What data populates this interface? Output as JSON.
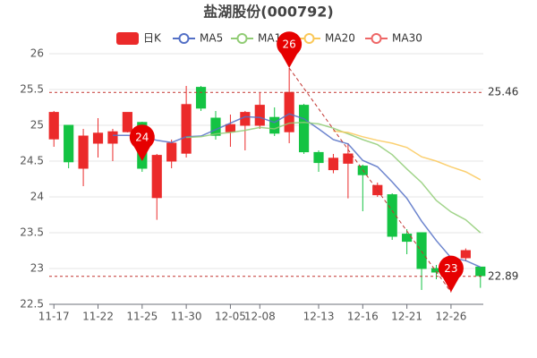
{
  "chart_data": {
    "type": "candlestick",
    "title": "盐湖股份(000792)",
    "categories": [
      "11-17",
      null,
      null,
      "11-22",
      null,
      null,
      "11-25",
      null,
      null,
      "11-30",
      null,
      null,
      "12-05",
      null,
      "12-08",
      null,
      null,
      null,
      "12-13",
      null,
      null,
      "12-16",
      null,
      null,
      "12-21",
      null,
      null,
      "12-26",
      null,
      null
    ],
    "candles": {
      "name": "日K",
      "color_up": "#eb2a2a",
      "color_down": "#14c343",
      "open": [
        24.81,
        25.0,
        24.4,
        24.75,
        24.75,
        24.91,
        25.04,
        23.99,
        24.5,
        24.61,
        25.53,
        25.1,
        24.91,
        25.0,
        25.0,
        25.11,
        24.91,
        25.28,
        24.62,
        24.38,
        24.47,
        24.43,
        24.03,
        24.03,
        23.48,
        23.5,
        23.0,
        22.95,
        23.15,
        23.02
      ],
      "close": [
        25.18,
        24.49,
        24.85,
        24.89,
        24.91,
        25.18,
        24.4,
        24.58,
        24.75,
        25.29,
        25.24,
        24.86,
        25.01,
        25.18,
        25.28,
        24.89,
        25.46,
        24.63,
        24.48,
        24.54,
        24.6,
        24.31,
        24.16,
        23.45,
        23.38,
        23.0,
        22.95,
        22.98,
        23.25,
        22.9
      ],
      "high": [
        25.2,
        25.0,
        24.95,
        25.1,
        24.95,
        25.18,
        25.05,
        24.6,
        24.8,
        25.55,
        25.55,
        25.2,
        25.15,
        25.2,
        25.45,
        25.25,
        25.8,
        25.3,
        24.65,
        24.6,
        24.75,
        24.45,
        24.2,
        24.05,
        23.55,
        23.5,
        23.05,
        23.1,
        23.28,
        23.02
      ],
      "low": [
        24.7,
        24.4,
        24.15,
        24.55,
        24.5,
        24.9,
        24.35,
        23.68,
        24.4,
        24.55,
        25.2,
        24.8,
        24.7,
        24.65,
        24.95,
        24.85,
        24.75,
        24.6,
        24.35,
        24.33,
        23.98,
        23.8,
        24.0,
        23.4,
        23.2,
        22.7,
        22.85,
        22.67,
        23.1,
        22.73
      ]
    },
    "series": [
      {
        "name": "MA5",
        "color": "#5470c6",
        "values": [
          null,
          null,
          null,
          null,
          24.86,
          24.86,
          24.85,
          24.79,
          24.76,
          24.84,
          24.85,
          24.94,
          25.03,
          25.12,
          25.11,
          25.04,
          25.16,
          25.09,
          24.95,
          24.8,
          24.74,
          24.51,
          24.42,
          24.21,
          23.98,
          23.66,
          23.39,
          23.15,
          23.11,
          23.02
        ]
      },
      {
        "name": "MA10",
        "color": "#91cc75",
        "values": [
          null,
          null,
          null,
          null,
          null,
          null,
          null,
          null,
          null,
          24.83,
          24.84,
          24.88,
          24.9,
          24.93,
          24.97,
          24.95,
          25.03,
          25.04,
          25.02,
          24.96,
          24.88,
          24.8,
          24.73,
          24.59,
          24.39,
          24.2,
          23.95,
          23.79,
          23.68,
          23.5
        ]
      },
      {
        "name": "MA20",
        "color": "#fac858",
        "values": [
          null,
          null,
          null,
          null,
          null,
          null,
          null,
          null,
          null,
          null,
          null,
          null,
          null,
          null,
          null,
          null,
          null,
          null,
          null,
          24.92,
          24.9,
          24.84,
          24.79,
          24.75,
          24.69,
          24.56,
          24.5,
          24.42,
          24.35,
          24.24
        ]
      },
      {
        "name": "MA30",
        "color": "#ee6666",
        "values": [
          null,
          null,
          null,
          null,
          null,
          null,
          null,
          null,
          null,
          null,
          null,
          null,
          null,
          null,
          null,
          null,
          null,
          null,
          null,
          null,
          null,
          null,
          null,
          null,
          null,
          null,
          null,
          null,
          null,
          null
        ]
      }
    ],
    "ylim": [
      22.5,
      26
    ],
    "yticks": [
      22.5,
      23,
      23.5,
      24,
      24.5,
      25,
      25.5,
      26
    ],
    "grid": true,
    "mark_lines": [
      {
        "value": 25.46
      },
      {
        "value": 22.89
      }
    ],
    "mark_line_color": "#c23531",
    "annotations": [
      {
        "label": "26",
        "index": 16,
        "value": 25.8
      },
      {
        "label": "24",
        "index": 6,
        "value": 24.5
      },
      {
        "label": "23",
        "index": 27,
        "value": 22.67
      }
    ],
    "annotation_color": "#e60000"
  }
}
